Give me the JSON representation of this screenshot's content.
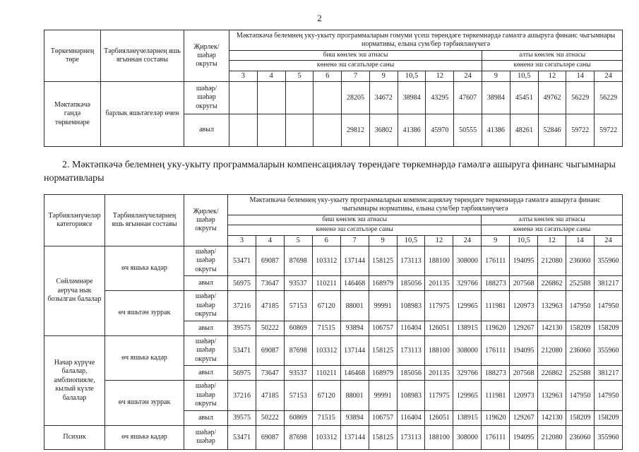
{
  "page": {
    "number": "2"
  },
  "table1": {
    "col_group_type": "Төркемнәрнең төре",
    "col_age_composition": "Тәрбияләнүчеләрнең яшь ягыннан составы",
    "col_locality": "Җирлек/ шәһәр округы",
    "main_header": "Мәктәпкәчә белемнең уку-укыту программаларын гомуми үсеш төрендәге төркемнәрдә гамәлгә ашыруга финанс чыгымнары нормативы, елына сум/бер тәрбияләнүчегә",
    "week5_header": "биш көнлек эш атнасы",
    "week6_header": "алты көнлек эш атнасы",
    "hours_label": "көненә эш сәгатьләре саны",
    "hours": [
      "3",
      "4",
      "5",
      "6",
      "7",
      "9",
      "10,5",
      "12",
      "24",
      "9",
      "10,5",
      "12",
      "14",
      "24"
    ],
    "group": "Мәктәпкәчә гандә төркемнәре",
    "age": "барлык яшьтәгеләр өчен",
    "body": [
      {
        "locality": "шәһәр/ шәһәр округы",
        "values": [
          "",
          "",
          "",
          "",
          "28205",
          "34672",
          "38984",
          "43295",
          "47607",
          "38984",
          "45451",
          "49762",
          "56229",
          "56229"
        ]
      },
      {
        "locality": "авыл",
        "values": [
          "",
          "",
          "",
          "",
          "29812",
          "36802",
          "41386",
          "45970",
          "50555",
          "41386",
          "48261",
          "52846",
          "59722",
          "59722"
        ]
      }
    ]
  },
  "section2": {
    "heading": "2.  Мәктәпкәчә белемнең уку-укыту программаларын компенсацияләү төрендәге төркемнәрдә гамәлгә ашыруга финанс чыгымнары нормативлары"
  },
  "table2": {
    "col_category": "Тәрбияләнүчеләр категориясе",
    "col_age_composition": "Тәрбияләнүчеләрнең яшь ягыннан составы",
    "col_locality": "Җирлек/ шәһәр округы",
    "main_header": "Мәктәпкәчә белемнең уку-укыту программаларын компенсацияләү төрендәге төркемнәрдә гамәлгә ашыруга финанс чыгымнары нормативы, елына сум/бер тәрбияләнүчегә",
    "week5_header": "биш көнлек эш атнасы",
    "week6_header": "алты көнлек эш атнасы",
    "hours_label": "көненә эш сәгатьләре саны",
    "hours": [
      "3",
      "4",
      "5",
      "6",
      "7",
      "9",
      "10,5",
      "12",
      "24",
      "9",
      "10,5",
      "12",
      "14",
      "24"
    ],
    "body": [
      {
        "category": "Сөйләмнәре аеруча нык бозылган балалар",
        "age": "өч яшькә кадәр",
        "locality": "шәһәр/ шәһәр округы",
        "values": [
          "53471",
          "69087",
          "87698",
          "103312",
          "137144",
          "158125",
          "173113",
          "188100",
          "308000",
          "176111",
          "194095",
          "212080",
          "236060",
          "355960"
        ]
      },
      {
        "locality": "авыл",
        "values": [
          "56975",
          "73647",
          "93537",
          "110211",
          "146468",
          "168979",
          "185056",
          "201135",
          "329766",
          "188273",
          "207568",
          "226862",
          "252588",
          "381217"
        ]
      },
      {
        "age": "өч яшьтән зуррак",
        "locality": "шәһәр/ шәһәр округы",
        "values": [
          "37216",
          "47185",
          "57153",
          "67120",
          "88001",
          "99991",
          "108983",
          "117975",
          "129965",
          "111981",
          "120973",
          "132963",
          "147950",
          "147950"
        ]
      },
      {
        "locality": "авыл",
        "values": [
          "39575",
          "50222",
          "60869",
          "71515",
          "93894",
          "106757",
          "116404",
          "126051",
          "138915",
          "119620",
          "129267",
          "142130",
          "158209",
          "158209"
        ]
      },
      {
        "category": "Начар күрүче балалар, амблиопияле, кылый күзле балалар",
        "age": "өч яшькә кадәр",
        "locality": "шәһәр/ шәһәр округы",
        "values": [
          "53471",
          "69087",
          "87698",
          "103312",
          "137144",
          "158125",
          "173113",
          "188100",
          "308000",
          "176111",
          "194095",
          "212080",
          "236060",
          "355960"
        ]
      },
      {
        "locality": "авыл",
        "values": [
          "56975",
          "73647",
          "93537",
          "110211",
          "146468",
          "168979",
          "185056",
          "201135",
          "329766",
          "188273",
          "207568",
          "226862",
          "252588",
          "381217"
        ]
      },
      {
        "age": "өч яшьтән зуррак",
        "locality": "шәһәр/ шәһәр округы",
        "values": [
          "37216",
          "47185",
          "57153",
          "67120",
          "88001",
          "99991",
          "108983",
          "117975",
          "129965",
          "111981",
          "120973",
          "132963",
          "147950",
          "147950"
        ]
      },
      {
        "locality": "авыл",
        "values": [
          "39575",
          "50222",
          "60869",
          "71515",
          "93894",
          "106757",
          "116404",
          "126051",
          "138915",
          "119620",
          "129267",
          "142130",
          "158209",
          "158209"
        ]
      },
      {
        "category": "Психик",
        "age": "өч яшькә кадәр",
        "locality": "шәһәр/ шәһәр",
        "values": [
          "53471",
          "69087",
          "87698",
          "103312",
          "137144",
          "158125",
          "173113",
          "188100",
          "308000",
          "176111",
          "194095",
          "212080",
          "236060",
          "355960"
        ]
      }
    ]
  }
}
